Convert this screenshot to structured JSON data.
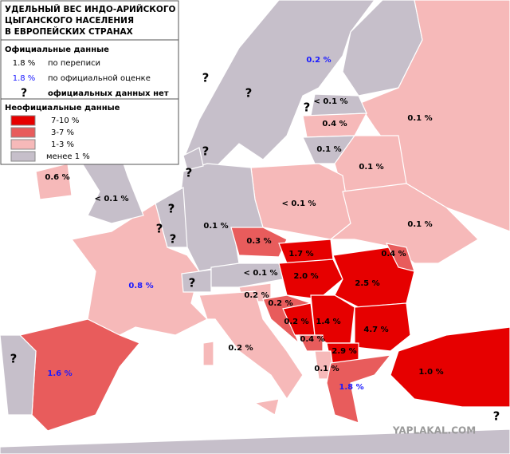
{
  "title": [
    "УДЕЛЬНЫЙ ВЕС ИНДО-АРИЙСКОГО",
    "ЦЫГАНСКОГО НАСЕЛЕНИЯ",
    "В ЕВРОПЕЙСКИХ СТРАНАХ"
  ],
  "official": {
    "heading": "Официальные данные",
    "rows": [
      {
        "sample": "1.8 %",
        "text": "по переписи",
        "color": "#000000"
      },
      {
        "sample": "1.8 %",
        "text": "по официальной оценке",
        "color": "#1a1aff"
      },
      {
        "sample": "?",
        "text": "официальных данных нет",
        "color": "#000000"
      }
    ]
  },
  "unofficial": {
    "heading": "Неофициальные данные",
    "rows": [
      {
        "text": "7-10 %",
        "color": "#e60000"
      },
      {
        "text": "3-7 %",
        "color": "#e85c5c"
      },
      {
        "text": "1-3 %",
        "color": "#f6b9b9"
      },
      {
        "text": "менее 1 %",
        "color": "#c6bfca"
      }
    ]
  },
  "labels": [
    {
      "text": "0.2 %",
      "color": "#1a1aff"
    },
    {
      "text": "?",
      "color": "#000000"
    },
    {
      "text": "?",
      "color": "#000000"
    },
    {
      "text": "?",
      "color": "#000000"
    },
    {
      "text": "< 0.1 %",
      "color": "#000000"
    },
    {
      "text": "0.1 %",
      "color": "#000000"
    },
    {
      "text": "0.4 %",
      "color": "#000000"
    },
    {
      "text": "?",
      "color": "#000000"
    },
    {
      "text": "0.1 %",
      "color": "#000000"
    },
    {
      "text": "0.1 %",
      "color": "#000000"
    },
    {
      "text": "?",
      "color": "#000000"
    },
    {
      "text": "0.6 %",
      "color": "#000000"
    },
    {
      "text": "< 0.1 %",
      "color": "#000000"
    },
    {
      "text": "< 0.1 %",
      "color": "#000000"
    },
    {
      "text": "?",
      "color": "#000000"
    },
    {
      "text": "0.1 %",
      "color": "#000000"
    },
    {
      "text": "0.1 %",
      "color": "#000000"
    },
    {
      "text": "?",
      "color": "#000000"
    },
    {
      "text": "?",
      "color": "#000000"
    },
    {
      "text": "0.3 %",
      "color": "#000000"
    },
    {
      "text": "1.7 %",
      "color": "#000000"
    },
    {
      "text": "0.4 %",
      "color": "#000000"
    },
    {
      "text": "< 0.1 %",
      "color": "#000000"
    },
    {
      "text": "2.0 %",
      "color": "#000000"
    },
    {
      "text": "2.5 %",
      "color": "#000000"
    },
    {
      "text": "0.8 %",
      "color": "#1a1aff"
    },
    {
      "text": "?",
      "color": "#000000"
    },
    {
      "text": "0.2 %",
      "color": "#000000"
    },
    {
      "text": "0.2 %",
      "color": "#000000"
    },
    {
      "text": "0.2 %",
      "color": "#000000"
    },
    {
      "text": "1.4 %",
      "color": "#000000"
    },
    {
      "text": "4.7 %",
      "color": "#000000"
    },
    {
      "text": "0.4 %",
      "color": "#000000"
    },
    {
      "text": "2.9 %",
      "color": "#000000"
    },
    {
      "text": "0.2 %",
      "color": "#000000"
    },
    {
      "text": "?",
      "color": "#000000"
    },
    {
      "text": "1.0 %",
      "color": "#000000"
    },
    {
      "text": "1.6 %",
      "color": "#1a1aff"
    },
    {
      "text": "0.1 %",
      "color": "#000000"
    },
    {
      "text": "1.8 %",
      "color": "#1a1aff"
    },
    {
      "text": "?",
      "color": "#000000"
    }
  ],
  "watermark": "YAPLAKAL.COM"
}
